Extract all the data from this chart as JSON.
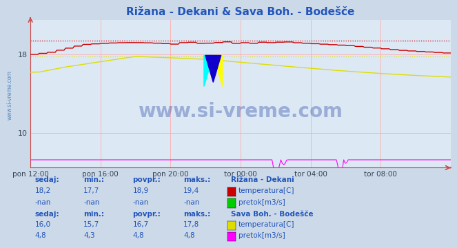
{
  "title": "Rižana - Dekani & Sava Boh. - Bodešče",
  "title_color": "#2255bb",
  "bg_color": "#ccd9e8",
  "plot_bg_color": "#dde8f5",
  "grid_color": "#ffaaaa",
  "ylim": [
    6.5,
    21.5
  ],
  "yticks": [
    10,
    18
  ],
  "x_labels": [
    "pon 12:00",
    "pon 16:00",
    "pon 20:00",
    "tor 00:00",
    "tor 04:00",
    "tor 08:00"
  ],
  "rizana_temp_color": "#cc0000",
  "rizana_pretok_color": "#00cc00",
  "sava_temp_color": "#dddd00",
  "sava_pretok_color": "#ff00ff",
  "rizana_temp_max": 19.4,
  "rizana_temp_min": 17.7,
  "rizana_temp_avg": 18.9,
  "rizana_temp_cur": 18.2,
  "sava_temp_max": 17.8,
  "sava_temp_min": 15.7,
  "sava_temp_avg": 16.7,
  "sava_temp_cur": 16.0,
  "sava_pretok_max": 4.8,
  "sava_pretok_min": 4.3,
  "sava_pretok_avg": 4.8,
  "sava_pretok_cur": 4.8,
  "watermark": "www.si-vreme.com",
  "watermark_color": "#3355aa",
  "sidebar_text": "www.si-vreme.com",
  "sidebar_color": "#5588bb"
}
